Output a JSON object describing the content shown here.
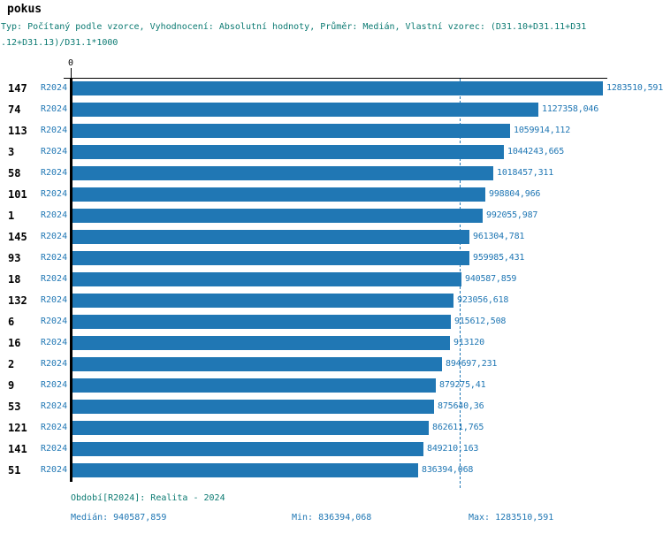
{
  "title": "pokus",
  "subtitle_lines": [
    "Typ: Počítaný podle vzorce, Vyhodnocení: Absolutní hodnoty, Průměr: Medián, Vlastní vzorec: (D31.10+D31.11+D31",
    ".12+D31.13)/D31.1*1000"
  ],
  "colors": {
    "bar": "#2077b4",
    "value_label": "#2077b4",
    "subtitle_teal": "#0b7a72",
    "axis_black": "#000000",
    "background": "#ffffff"
  },
  "chart_data": {
    "type": "bar",
    "orientation": "horizontal",
    "title": "pokus",
    "categories": [
      "147",
      "74",
      "113",
      "3",
      "58",
      "101",
      "1",
      "145",
      "93",
      "18",
      "132",
      "6",
      "16",
      "2",
      "9",
      "53",
      "121",
      "141",
      "51"
    ],
    "series_label": "R2024",
    "values": [
      1283510.591,
      1127358.046,
      1059914.112,
      1044243.665,
      1018457.311,
      998804.966,
      992055.987,
      961304.781,
      959985.431,
      940587.859,
      923056.618,
      915612.508,
      913120,
      894697.231,
      879275.41,
      875640.36,
      862611.765,
      849210.163,
      836394.068
    ],
    "value_labels": [
      "1283510,591",
      "1127358,046",
      "1059914,112",
      "1044243,665",
      "1018457,311",
      "998804,966",
      "992055,987",
      "961304,781",
      "959985,431",
      "940587,859",
      "923056,618",
      "915612,508",
      "913120",
      "894697,231",
      "879275,41",
      "875640,36",
      "862611,765",
      "849210,163",
      "836394,068"
    ],
    "xlim": [
      0,
      1283510.591
    ],
    "axis_origin_label": "0",
    "median": 940587.859,
    "min": 836394.068,
    "max": 1283510.591,
    "grid": "off",
    "median_reference_line": "dashed vertical at median value"
  },
  "footer": {
    "period": "Období[R2024]: Realita - 2024",
    "median_label": "Medián: 940587,859",
    "min_label": "Min: 836394,068",
    "max_label": "Max: 1283510,591"
  }
}
